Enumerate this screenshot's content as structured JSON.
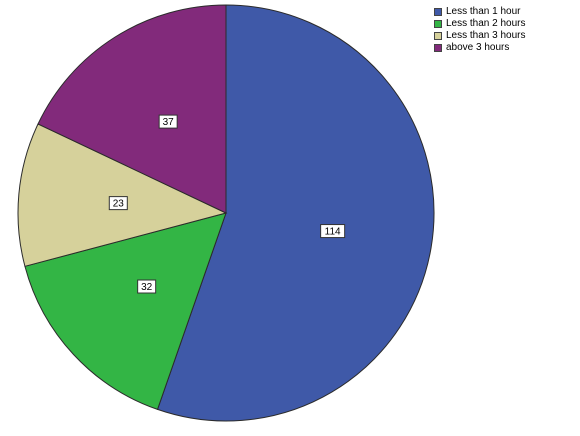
{
  "chart_data": {
    "type": "pie",
    "title": "",
    "legend_position": "top-right",
    "start_angle": "12 o'clock",
    "direction": "clockwise",
    "slices": [
      {
        "label": "Less than 1 hour",
        "value": 114,
        "value_label": "114",
        "color": "#3f59a8"
      },
      {
        "label": "Less than 2 hours",
        "value": 32,
        "value_label": "32",
        "color": "#33b545"
      },
      {
        "label": "Less than 3 hours",
        "value": 23,
        "value_label": "23",
        "color": "#d6d19b"
      },
      {
        "label": "above 3 hours",
        "value": 37,
        "value_label": "37",
        "color": "#822a7b"
      }
    ]
  }
}
